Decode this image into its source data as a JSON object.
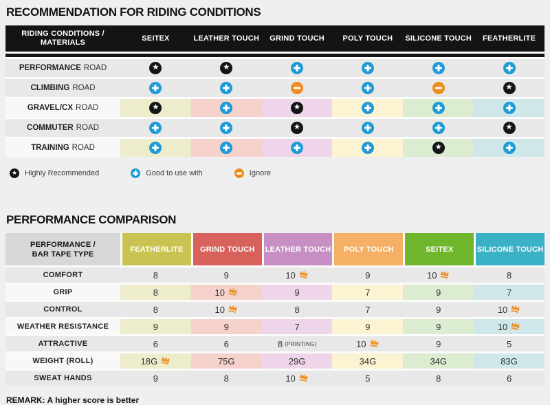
{
  "recommendation": {
    "title": "RECOMMENDATION FOR RIDING CONDITIONS",
    "header_line1": "RIDING CONDITIONS /",
    "header_line2": "MATERIALS",
    "columns": [
      "SEITEX",
      "LEATHER TOUCH",
      "GRIND TOUCH",
      "POLY TOUCH",
      "SILICONE TOUCH",
      "FEATHERLITE"
    ],
    "column_tints": [
      "#edeccb",
      "#f5d2cb",
      "#eed5e9",
      "#fcf3d2",
      "#dcecd0",
      "#cfe7e9"
    ],
    "rows": [
      {
        "activity": "PERFORMANCE",
        "category": "ROAD",
        "tinted": false,
        "cells": [
          "star",
          "star",
          "plus",
          "plus",
          "plus",
          "plus"
        ]
      },
      {
        "activity": "CLIMBING",
        "category": "ROAD",
        "tinted": false,
        "cells": [
          "plus",
          "plus",
          "minus",
          "plus",
          "minus",
          "star"
        ]
      },
      {
        "activity": "GRAVEL/CX",
        "category": "ROAD",
        "tinted": true,
        "cells": [
          "star",
          "plus",
          "star",
          "plus",
          "plus",
          "plus"
        ]
      },
      {
        "activity": "COMMUTER",
        "category": "ROAD",
        "tinted": false,
        "cells": [
          "plus",
          "plus",
          "star",
          "plus",
          "plus",
          "star"
        ]
      },
      {
        "activity": "TRAINING",
        "category": "ROAD",
        "tinted": true,
        "cells": [
          "plus",
          "plus",
          "plus",
          "plus",
          "star",
          "plus"
        ]
      }
    ],
    "legend": [
      {
        "icon": "star",
        "label": "Highly Recommended"
      },
      {
        "icon": "plus",
        "label": "Good to use with"
      },
      {
        "icon": "minus",
        "label": "Ignore"
      }
    ]
  },
  "performance": {
    "title": "PERFORMANCE COMPARISON",
    "header_line1": "PERFORMANCE /",
    "header_line2": "BAR TAPE TYPE",
    "columns": [
      {
        "label": "FEATHERLITE",
        "color": "#c9c352",
        "tint": "#edeccb"
      },
      {
        "label": "GRIND TOUCH",
        "color": "#d8615c",
        "tint": "#f5d2cb"
      },
      {
        "label": "LEATHER TOUCH",
        "color": "#c78fc3",
        "tint": "#eed5e9"
      },
      {
        "label": "POLY TOUCH",
        "color": "#f5b065",
        "tint": "#fcf3d2"
      },
      {
        "label": "SEITEX",
        "color": "#6fb62c",
        "tint": "#dcecd0"
      },
      {
        "label": "SILICONE TOUCH",
        "color": "#3ab1c4",
        "tint": "#cfe7e9"
      }
    ],
    "rows": [
      {
        "label": "COMFORT",
        "tinted": false,
        "cells": [
          {
            "v": "8"
          },
          {
            "v": "9"
          },
          {
            "v": "10",
            "crown": true
          },
          {
            "v": "9"
          },
          {
            "v": "10",
            "crown": true
          },
          {
            "v": "8"
          }
        ]
      },
      {
        "label": "GRIP",
        "tinted": true,
        "cells": [
          {
            "v": "8"
          },
          {
            "v": "10",
            "crown": true
          },
          {
            "v": "9"
          },
          {
            "v": "7"
          },
          {
            "v": "9"
          },
          {
            "v": "7"
          }
        ]
      },
      {
        "label": "CONTROL",
        "tinted": false,
        "cells": [
          {
            "v": "8"
          },
          {
            "v": "10",
            "crown": true
          },
          {
            "v": "8"
          },
          {
            "v": "7"
          },
          {
            "v": "9"
          },
          {
            "v": "10",
            "crown": true
          }
        ]
      },
      {
        "label": "WEATHER RESISTANCE",
        "tinted": true,
        "cells": [
          {
            "v": "9"
          },
          {
            "v": "9"
          },
          {
            "v": "7"
          },
          {
            "v": "9"
          },
          {
            "v": "9"
          },
          {
            "v": "10",
            "crown": true
          }
        ]
      },
      {
        "label": "ATTRACTIVE",
        "tinted": false,
        "cells": [
          {
            "v": "6"
          },
          {
            "v": "6"
          },
          {
            "v": "8",
            "suffix": "(PRINTING)"
          },
          {
            "v": "10",
            "crown": true
          },
          {
            "v": "9"
          },
          {
            "v": "5"
          }
        ]
      },
      {
        "label": "WEIGHT (ROLL)",
        "tinted": true,
        "cells": [
          {
            "v": "18G",
            "crown": true
          },
          {
            "v": "75G"
          },
          {
            "v": "29G"
          },
          {
            "v": "34G"
          },
          {
            "v": "34G"
          },
          {
            "v": "83G"
          }
        ]
      },
      {
        "label": "SWEAT HANDS",
        "tinted": false,
        "cells": [
          {
            "v": "9"
          },
          {
            "v": "8"
          },
          {
            "v": "10",
            "crown": true
          },
          {
            "v": "5"
          },
          {
            "v": "8"
          },
          {
            "v": "6"
          }
        ]
      }
    ],
    "remark": "REMARK: A higher score is better"
  },
  "colors": {
    "page_background": "#f0efef",
    "header_black": "#141414",
    "row_gray": "#e9e8e8",
    "row_label_white": "#f9f8f8",
    "icon_star_black": "#141414",
    "icon_plus_blue": "#1e9bd7",
    "icon_minus_orange": "#ee8d1d",
    "crown_orange": "#f0932c",
    "t2_label_header_gray": "#d8d8d8"
  },
  "chart_data": [
    {
      "type": "table",
      "title": "RECOMMENDATION FOR RIDING CONDITIONS",
      "columns": [
        "SEITEX",
        "LEATHER TOUCH",
        "GRIND TOUCH",
        "POLY TOUCH",
        "SILICONE TOUCH",
        "FEATHERLITE"
      ],
      "legend": {
        "star": "Highly Recommended",
        "plus": "Good to use with",
        "minus": "Ignore"
      },
      "rows": [
        {
          "label": "PERFORMANCE ROAD",
          "values": [
            "star",
            "star",
            "plus",
            "plus",
            "plus",
            "plus"
          ]
        },
        {
          "label": "CLIMBING ROAD",
          "values": [
            "plus",
            "plus",
            "minus",
            "plus",
            "minus",
            "star"
          ]
        },
        {
          "label": "GRAVEL/CX ROAD",
          "values": [
            "star",
            "plus",
            "star",
            "plus",
            "plus",
            "plus"
          ]
        },
        {
          "label": "COMMUTER ROAD",
          "values": [
            "plus",
            "plus",
            "star",
            "plus",
            "plus",
            "star"
          ]
        },
        {
          "label": "TRAINING ROAD",
          "values": [
            "plus",
            "plus",
            "plus",
            "plus",
            "star",
            "plus"
          ]
        }
      ]
    },
    {
      "type": "table",
      "title": "PERFORMANCE COMPARISON",
      "columns": [
        "FEATHERLITE",
        "GRIND TOUCH",
        "LEATHER TOUCH",
        "POLY TOUCH",
        "SEITEX",
        "SILICONE TOUCH"
      ],
      "best_marker": "orange crown icon",
      "rows": [
        {
          "label": "COMFORT",
          "values": [
            "8",
            "9",
            "10",
            "9",
            "10",
            "8"
          ],
          "best": [
            false,
            false,
            true,
            false,
            true,
            false
          ]
        },
        {
          "label": "GRIP",
          "values": [
            "8",
            "10",
            "9",
            "7",
            "9",
            "7"
          ],
          "best": [
            false,
            true,
            false,
            false,
            false,
            false
          ]
        },
        {
          "label": "CONTROL",
          "values": [
            "8",
            "10",
            "8",
            "7",
            "9",
            "10"
          ],
          "best": [
            false,
            true,
            false,
            false,
            false,
            true
          ]
        },
        {
          "label": "WEATHER RESISTANCE",
          "values": [
            "9",
            "9",
            "7",
            "9",
            "9",
            "10"
          ],
          "best": [
            false,
            false,
            false,
            false,
            false,
            true
          ]
        },
        {
          "label": "ATTRACTIVE",
          "values": [
            "6",
            "6",
            "8 (PRINTING)",
            "10",
            "9",
            "5"
          ],
          "best": [
            false,
            false,
            false,
            true,
            false,
            false
          ]
        },
        {
          "label": "WEIGHT (ROLL)",
          "values": [
            "18G",
            "75G",
            "29G",
            "34G",
            "34G",
            "83G"
          ],
          "best": [
            true,
            false,
            false,
            false,
            false,
            false
          ]
        },
        {
          "label": "SWEAT HANDS",
          "values": [
            "9",
            "8",
            "10",
            "5",
            "8",
            "6"
          ],
          "best": [
            false,
            false,
            true,
            false,
            false,
            false
          ]
        }
      ],
      "remark": "REMARK: A higher score is better"
    }
  ]
}
